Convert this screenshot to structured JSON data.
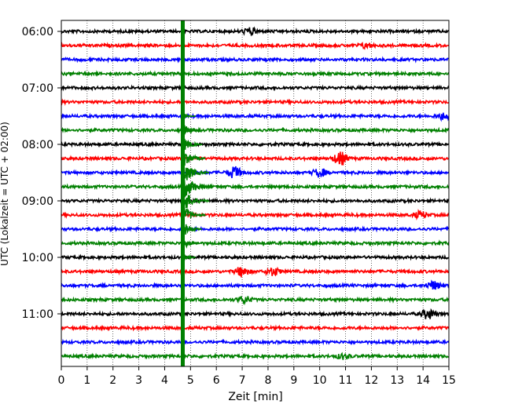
{
  "chart_data": {
    "type": "line",
    "title": "",
    "xlabel": "Zeit  [min]",
    "ylabel": "UTC (Lokalzeit = UTC + 02:00)",
    "xlim": [
      0,
      15
    ],
    "x_ticks": [
      0,
      1,
      2,
      3,
      4,
      5,
      6,
      7,
      8,
      9,
      10,
      11,
      12,
      13,
      14,
      15
    ],
    "x_tick_labels": [
      "0",
      "1",
      "2",
      "3",
      "4",
      "5",
      "6",
      "7",
      "8",
      "9",
      "10",
      "11",
      "12",
      "13",
      "14",
      "15"
    ],
    "y_tick_labels": [
      "06:00",
      "07:00",
      "08:00",
      "09:00",
      "10:00",
      "11:00"
    ],
    "y_tick_traces": [
      0,
      4,
      8,
      12,
      16,
      20
    ],
    "minutes_per_trace": 15,
    "trace_count": 24,
    "grid": "vertical-dotted",
    "colors": [
      "#000000",
      "#ff0000",
      "#0000ff",
      "#008000"
    ],
    "event": {
      "onset_min": 4.7,
      "onset_trace": 0,
      "peak_trace": 11,
      "color": "#008000"
    },
    "bursts": [
      {
        "trace": 0,
        "x": 7.3,
        "amp": 4
      },
      {
        "trace": 1,
        "x": 11.8,
        "amp": 3
      },
      {
        "trace": 6,
        "x": 14.8,
        "amp": 4
      },
      {
        "trace": 9,
        "x": 10.8,
        "amp": 8
      },
      {
        "trace": 10,
        "x": 6.7,
        "amp": 7
      },
      {
        "trace": 10,
        "x": 10.0,
        "amp": 5
      },
      {
        "trace": 13,
        "x": 13.9,
        "amp": 4
      },
      {
        "trace": 17,
        "x": 7.0,
        "amp": 6
      },
      {
        "trace": 17,
        "x": 8.2,
        "amp": 5
      },
      {
        "trace": 18,
        "x": 14.4,
        "amp": 5
      },
      {
        "trace": 19,
        "x": 7.1,
        "amp": 4
      },
      {
        "trace": 20,
        "x": 14.2,
        "amp": 6
      },
      {
        "trace": 23,
        "x": 10.9,
        "amp": 3
      }
    ]
  }
}
